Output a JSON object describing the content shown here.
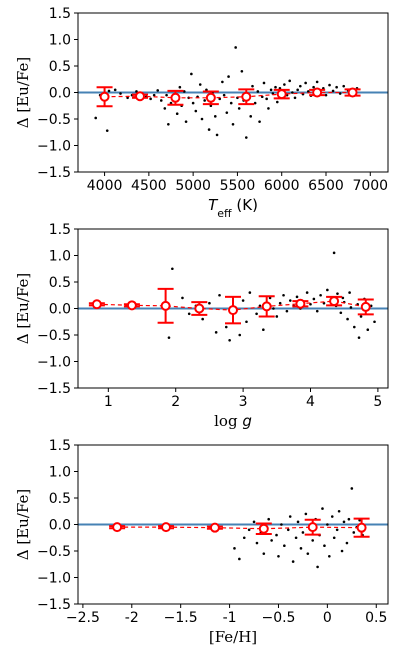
{
  "chart_data": [
    {
      "type": "scatter",
      "xlabel": "T_eff (K)",
      "xlabel_main": "T",
      "xlabel_sub": "eff",
      "xlabel_unit": " (K)",
      "ylabel": "Δ [Eu/Fe]",
      "xlim": [
        3700,
        7200
      ],
      "ylim": [
        -1.5,
        1.5
      ],
      "xticks": [
        4000,
        4500,
        5000,
        5500,
        6000,
        6500,
        7000
      ],
      "yticks": [
        -1.5,
        -1.0,
        -0.5,
        0.0,
        0.5,
        1.0,
        1.5
      ],
      "zero_line": 0,
      "binned": [
        {
          "x": 4000,
          "y": -0.08,
          "err": 0.18
        },
        {
          "x": 4400,
          "y": -0.07,
          "err": 0.03
        },
        {
          "x": 4800,
          "y": -0.1,
          "err": 0.13
        },
        {
          "x": 5200,
          "y": -0.1,
          "err": 0.12
        },
        {
          "x": 5600,
          "y": -0.08,
          "err": 0.14
        },
        {
          "x": 6000,
          "y": -0.03,
          "err": 0.08
        },
        {
          "x": 6400,
          "y": 0.0,
          "err": 0.05
        },
        {
          "x": 6800,
          "y": 0.0,
          "err": 0.06
        }
      ],
      "points": [
        [
          3900,
          -0.48
        ],
        [
          3950,
          -0.05
        ],
        [
          4030,
          -0.72
        ],
        [
          4050,
          0.03
        ],
        [
          4120,
          0.05
        ],
        [
          4180,
          -0.02
        ],
        [
          4260,
          -0.1
        ],
        [
          4310,
          -0.05
        ],
        [
          4360,
          0.02
        ],
        [
          4420,
          -0.03
        ],
        [
          4470,
          -0.08
        ],
        [
          4520,
          -0.12
        ],
        [
          4560,
          -0.05
        ],
        [
          4600,
          0.04
        ],
        [
          4640,
          -0.15
        ],
        [
          4680,
          -0.3
        ],
        [
          4700,
          -0.05
        ],
        [
          4720,
          -0.6
        ],
        [
          4750,
          -0.2
        ],
        [
          4780,
          -0.08
        ],
        [
          4820,
          -0.4
        ],
        [
          4850,
          0.1
        ],
        [
          4870,
          -0.25
        ],
        [
          4900,
          0.02
        ],
        [
          4920,
          -0.55
        ],
        [
          4950,
          -0.1
        ],
        [
          4980,
          0.35
        ],
        [
          5000,
          -0.2
        ],
        [
          5030,
          -0.35
        ],
        [
          5050,
          -0.08
        ],
        [
          5080,
          0.15
        ],
        [
          5100,
          -0.5
        ],
        [
          5130,
          -0.15
        ],
        [
          5150,
          0.05
        ],
        [
          5180,
          -0.7
        ],
        [
          5200,
          -0.25
        ],
        [
          5220,
          0.0
        ],
        [
          5250,
          -0.45
        ],
        [
          5270,
          -0.8
        ],
        [
          5300,
          -0.12
        ],
        [
          5330,
          0.2
        ],
        [
          5350,
          -0.05
        ],
        [
          5380,
          -0.38
        ],
        [
          5400,
          0.3
        ],
        [
          5430,
          -0.2
        ],
        [
          5450,
          -0.6
        ],
        [
          5480,
          0.85
        ],
        [
          5500,
          -0.1
        ],
        [
          5520,
          -0.3
        ],
        [
          5550,
          0.4
        ],
        [
          5570,
          -0.15
        ],
        [
          5600,
          -0.85
        ],
        [
          5620,
          -0.05
        ],
        [
          5650,
          -0.45
        ],
        [
          5670,
          0.12
        ],
        [
          5700,
          -0.2
        ],
        [
          5730,
          0.02
        ],
        [
          5750,
          -0.55
        ],
        [
          5780,
          -0.08
        ],
        [
          5800,
          0.18
        ],
        [
          5830,
          -0.12
        ],
        [
          5850,
          -0.3
        ],
        [
          5880,
          0.05
        ],
        [
          5900,
          -0.02
        ],
        [
          5930,
          0.1
        ],
        [
          5950,
          -0.18
        ],
        [
          5980,
          0.08
        ],
        [
          6000,
          -0.08
        ],
        [
          6030,
          0.15
        ],
        [
          6060,
          -0.05
        ],
        [
          6090,
          0.22
        ],
        [
          6120,
          0.0
        ],
        [
          6150,
          -0.1
        ],
        [
          6180,
          0.05
        ],
        [
          6210,
          0.12
        ],
        [
          6240,
          -0.03
        ],
        [
          6270,
          0.18
        ],
        [
          6300,
          0.02
        ],
        [
          6330,
          -0.06
        ],
        [
          6360,
          0.1
        ],
        [
          6400,
          0.2
        ],
        [
          6430,
          0.0
        ],
        [
          6470,
          0.08
        ],
        [
          6500,
          -0.05
        ],
        [
          6540,
          0.14
        ],
        [
          6580,
          0.03
        ],
        [
          6620,
          0.1
        ],
        [
          6660,
          -0.02
        ],
        [
          6700,
          0.12
        ],
        [
          6750,
          0.04
        ],
        [
          6800,
          -0.04
        ],
        [
          6850,
          0.08
        ]
      ]
    },
    {
      "type": "scatter",
      "xlabel": "log g",
      "xlabel_main": "log ",
      "xlabel_italic": "g",
      "ylabel": "Δ [Eu/Fe]",
      "xlim": [
        0.55,
        5.15
      ],
      "ylim": [
        -1.5,
        1.5
      ],
      "xticks": [
        1,
        2,
        3,
        4,
        5
      ],
      "yticks": [
        -1.5,
        -1.0,
        -0.5,
        0.0,
        0.5,
        1.0,
        1.5
      ],
      "zero_line": 0,
      "binned": [
        {
          "x": 0.83,
          "y": 0.08,
          "err": 0.02
        },
        {
          "x": 1.35,
          "y": 0.06,
          "err": 0.02
        },
        {
          "x": 1.85,
          "y": 0.05,
          "err": 0.32
        },
        {
          "x": 2.35,
          "y": 0.0,
          "err": 0.12
        },
        {
          "x": 2.85,
          "y": -0.03,
          "err": 0.25
        },
        {
          "x": 3.35,
          "y": 0.04,
          "err": 0.19
        },
        {
          "x": 3.85,
          "y": 0.09,
          "err": 0.05
        },
        {
          "x": 4.35,
          "y": 0.14,
          "err": 0.08
        },
        {
          "x": 4.82,
          "y": 0.03,
          "err": 0.14
        }
      ],
      "points": [
        [
          1.9,
          -0.55
        ],
        [
          1.95,
          0.75
        ],
        [
          2.1,
          0.2
        ],
        [
          2.2,
          -0.1
        ],
        [
          2.3,
          0.05
        ],
        [
          2.4,
          -0.2
        ],
        [
          2.5,
          0.1
        ],
        [
          2.6,
          -0.45
        ],
        [
          2.65,
          0.25
        ],
        [
          2.75,
          -0.35
        ],
        [
          2.8,
          -0.6
        ],
        [
          2.9,
          0.0
        ],
        [
          2.95,
          -0.5
        ],
        [
          3.0,
          0.15
        ],
        [
          3.05,
          -0.25
        ],
        [
          3.1,
          0.3
        ],
        [
          3.2,
          -0.1
        ],
        [
          3.25,
          0.05
        ],
        [
          3.3,
          -0.4
        ],
        [
          3.4,
          0.2
        ],
        [
          3.45,
          0.0
        ],
        [
          3.5,
          -0.15
        ],
        [
          3.55,
          0.1
        ],
        [
          3.6,
          0.25
        ],
        [
          3.65,
          -0.05
        ],
        [
          3.7,
          0.15
        ],
        [
          3.75,
          0.05
        ],
        [
          3.8,
          0.22
        ],
        [
          3.85,
          0.0
        ],
        [
          3.9,
          0.12
        ],
        [
          3.95,
          0.3
        ],
        [
          4.0,
          0.08
        ],
        [
          4.05,
          0.18
        ],
        [
          4.1,
          -0.05
        ],
        [
          4.15,
          0.25
        ],
        [
          4.2,
          0.1
        ],
        [
          4.25,
          0.35
        ],
        [
          4.3,
          0.15
        ],
        [
          4.35,
          1.05
        ],
        [
          4.38,
          0.05
        ],
        [
          4.4,
          0.28
        ],
        [
          4.45,
          -0.08
        ],
        [
          4.48,
          0.2
        ],
        [
          4.5,
          0.12
        ],
        [
          4.55,
          -0.2
        ],
        [
          4.58,
          0.3
        ],
        [
          4.6,
          0.02
        ],
        [
          4.65,
          -0.35
        ],
        [
          4.7,
          0.08
        ],
        [
          4.72,
          -0.55
        ],
        [
          4.75,
          -0.15
        ],
        [
          4.8,
          0.18
        ],
        [
          4.85,
          -0.4
        ],
        [
          4.9,
          0.05
        ],
        [
          4.95,
          -0.25
        ]
      ]
    },
    {
      "type": "scatter",
      "xlabel": "[Fe/H]",
      "ylabel": "Δ [Eu/Fe]",
      "xlim": [
        -2.55,
        0.62
      ],
      "ylim": [
        -1.5,
        1.5
      ],
      "xticks": [
        -2.5,
        -2.0,
        -1.5,
        -1.0,
        -0.5,
        0.0,
        0.5
      ],
      "yticks": [
        -1.5,
        -1.0,
        -0.5,
        0.0,
        0.5,
        1.0,
        1.5
      ],
      "zero_line": 0,
      "binned": [
        {
          "x": -2.15,
          "y": -0.05,
          "err": 0.02
        },
        {
          "x": -1.65,
          "y": -0.05,
          "err": 0.02
        },
        {
          "x": -1.15,
          "y": -0.06,
          "err": 0.02
        },
        {
          "x": -0.65,
          "y": -0.08,
          "err": 0.1
        },
        {
          "x": -0.15,
          "y": -0.05,
          "err": 0.14
        },
        {
          "x": 0.35,
          "y": -0.06,
          "err": 0.17
        }
      ],
      "points": [
        [
          -0.95,
          -0.45
        ],
        [
          -0.9,
          -0.65
        ],
        [
          -0.85,
          -0.25
        ],
        [
          -0.8,
          -0.1
        ],
        [
          -0.75,
          0.05
        ],
        [
          -0.72,
          -0.35
        ],
        [
          -0.68,
          -0.15
        ],
        [
          -0.65,
          -0.55
        ],
        [
          -0.6,
          0.1
        ],
        [
          -0.57,
          -0.3
        ],
        [
          -0.52,
          -0.2
        ],
        [
          -0.5,
          -0.6
        ],
        [
          -0.47,
          0.0
        ],
        [
          -0.44,
          -0.4
        ],
        [
          -0.4,
          -0.1
        ],
        [
          -0.38,
          0.15
        ],
        [
          -0.35,
          -0.7
        ],
        [
          -0.32,
          -0.25
        ],
        [
          -0.3,
          0.05
        ],
        [
          -0.27,
          -0.45
        ],
        [
          -0.25,
          -0.15
        ],
        [
          -0.22,
          0.2
        ],
        [
          -0.2,
          -0.55
        ],
        [
          -0.17,
          -0.05
        ],
        [
          -0.15,
          -0.3
        ],
        [
          -0.12,
          0.1
        ],
        [
          -0.1,
          -0.8
        ],
        [
          -0.08,
          -0.2
        ],
        [
          -0.05,
          0.3
        ],
        [
          -0.03,
          -0.4
        ],
        [
          0.0,
          0.0
        ],
        [
          0.02,
          -0.6
        ],
        [
          0.05,
          0.15
        ],
        [
          0.07,
          -0.25
        ],
        [
          0.1,
          -0.1
        ],
        [
          0.12,
          0.25
        ],
        [
          0.15,
          -0.5
        ],
        [
          0.17,
          0.05
        ],
        [
          0.2,
          -0.35
        ],
        [
          0.22,
          0.1
        ],
        [
          0.25,
          0.68
        ],
        [
          0.27,
          -0.15
        ],
        [
          0.3,
          -0.05
        ],
        [
          0.33,
          0.08
        ],
        [
          0.36,
          -0.2
        ]
      ]
    }
  ],
  "colors": {
    "zero_line": "#4682b4",
    "binned": "#ff0000",
    "points": "#000000"
  }
}
